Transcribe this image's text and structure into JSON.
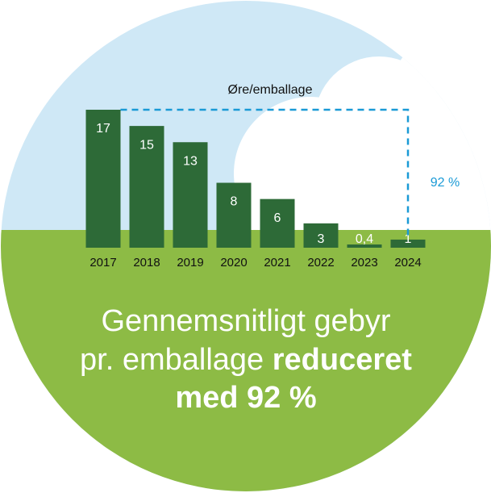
{
  "chart_data": {
    "type": "bar",
    "title": "Øre/emballage",
    "categories": [
      "2017",
      "2018",
      "2019",
      "2020",
      "2021",
      "2022",
      "2023",
      "2024"
    ],
    "values": [
      17,
      15,
      13,
      8,
      6,
      3,
      0.4,
      1
    ],
    "value_labels": [
      "17",
      "15",
      "13",
      "8",
      "6",
      "3",
      "0,4",
      "1"
    ],
    "color": "#2d6a37",
    "annotation": "92 %"
  },
  "headline": {
    "line1": "Gennemsnitligt gebyr",
    "line2_regular": "pr. emballage",
    "line2_bold": "reduceret",
    "line3": "med 92 %"
  }
}
